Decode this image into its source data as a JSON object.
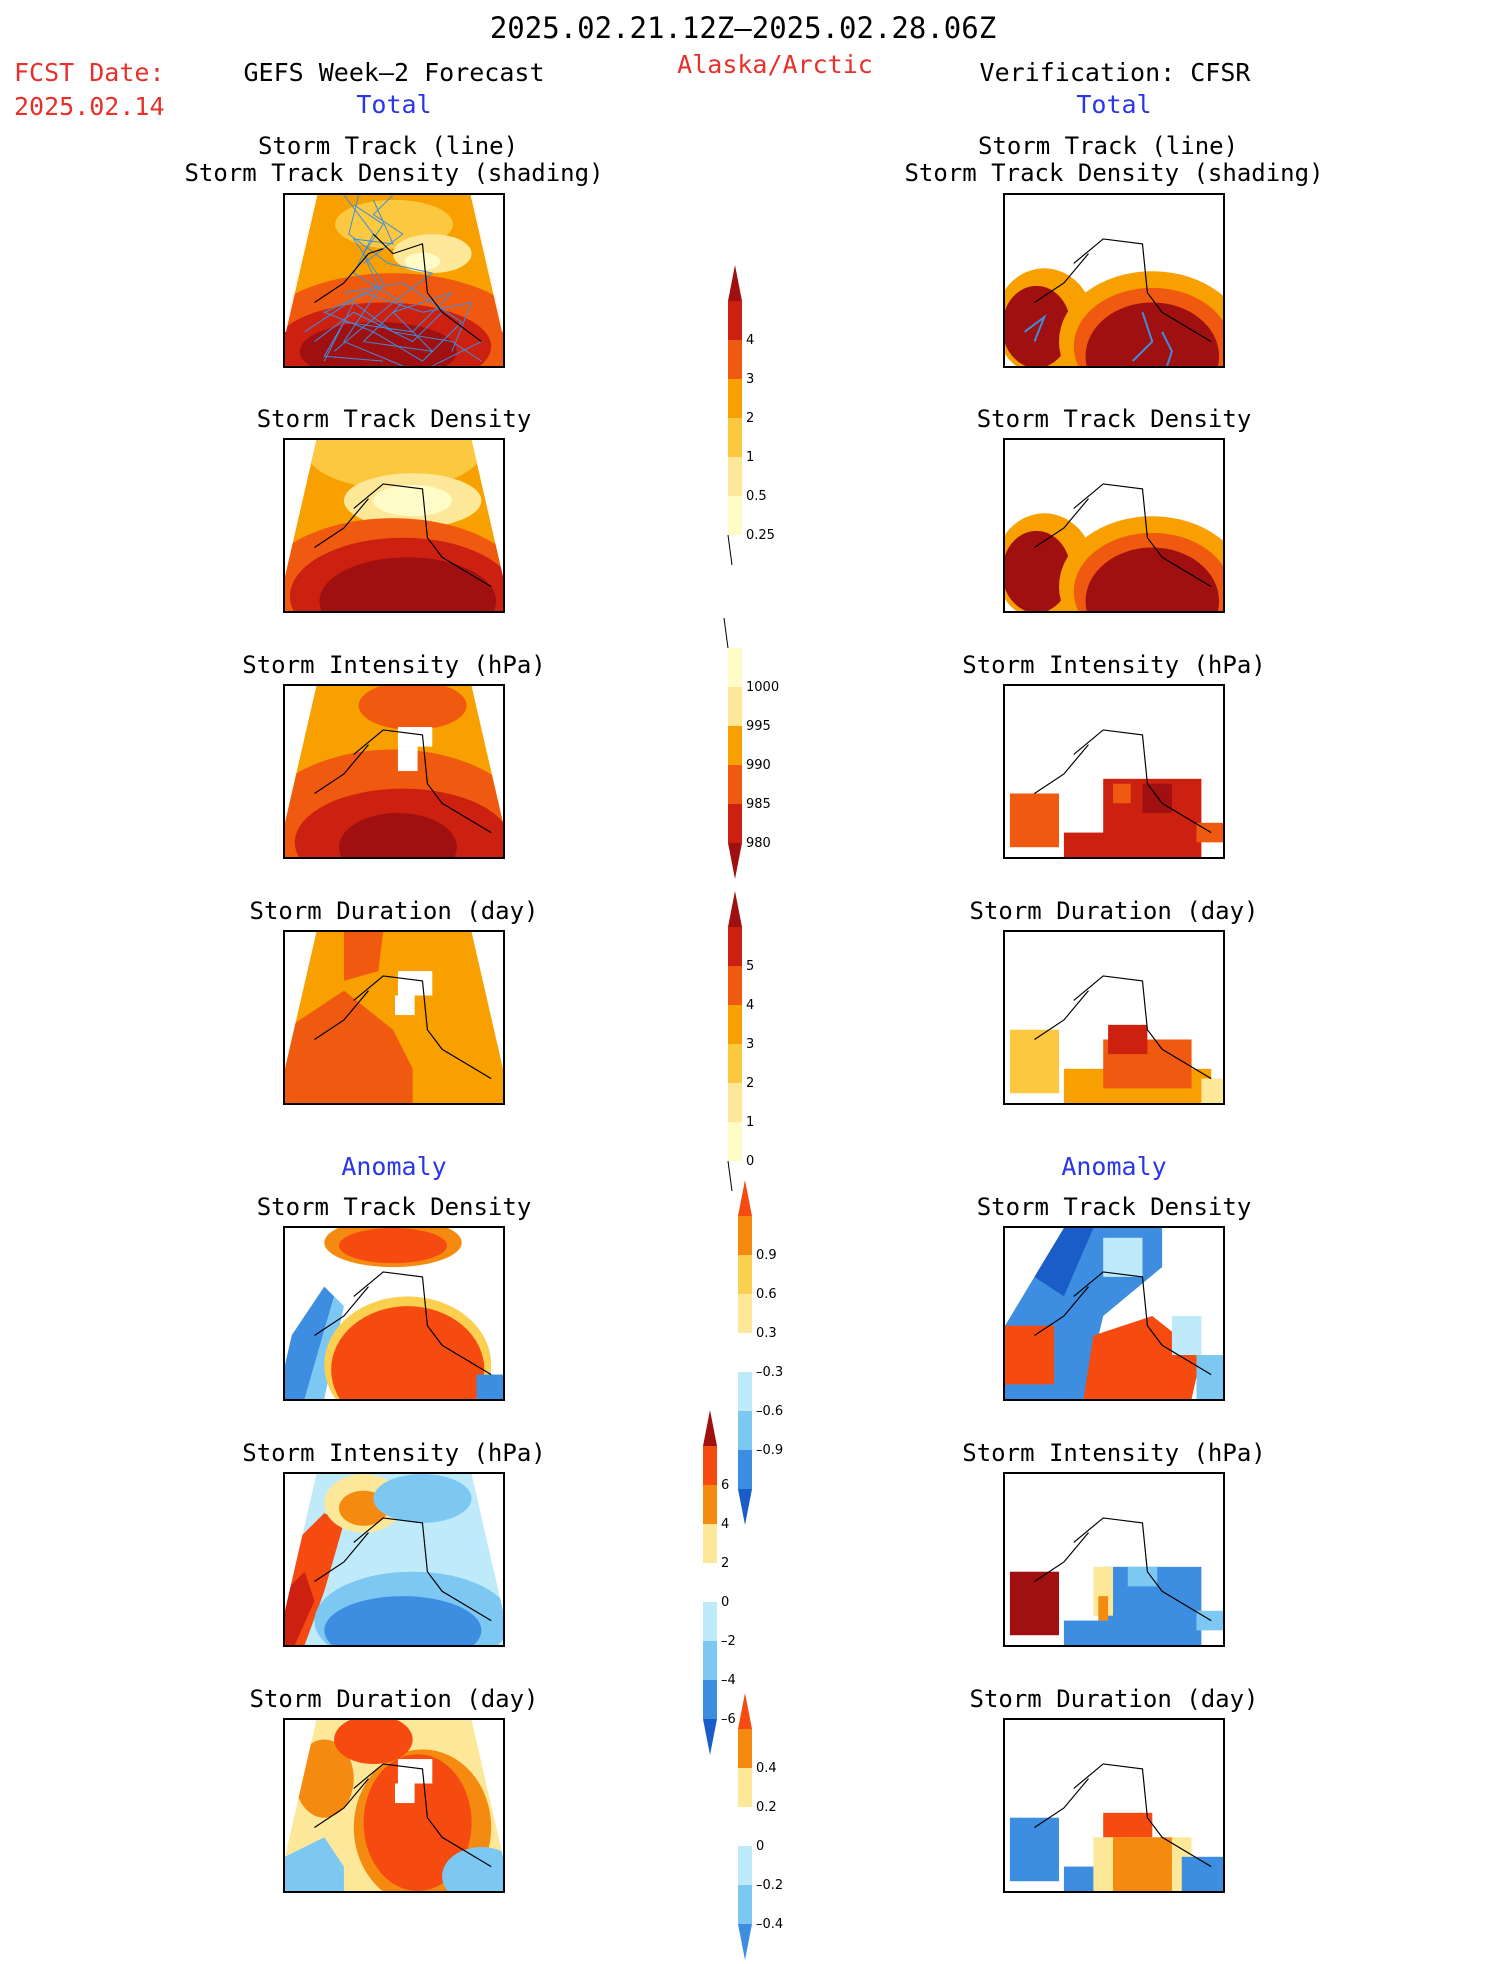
{
  "header": {
    "period": "2025.02.21.12Z–2025.02.28.06Z",
    "fcst_label": "FCST Date:",
    "fcst_date": "2025.02.14",
    "left_title": "GEFS Week–2 Forecast",
    "region": "Alaska/Arctic",
    "right_title": "Verification: CFSR"
  },
  "sections": {
    "total": "Total",
    "anomaly": "Anomaly"
  },
  "panel_titles": {
    "track_line": "Storm Track (line)",
    "track_shading": "Storm Track Density (shading)",
    "density": "Storm Track Density",
    "intensity": "Storm Intensity (hPa)",
    "duration": "Storm Duration (day)"
  },
  "colorbars": [
    {
      "id": "density_total",
      "labels": [
        "4",
        "3",
        "2",
        "1",
        "0.5",
        "0.25"
      ],
      "colors": [
        "#a01010",
        "#cc2010",
        "#ef5a10",
        "#f7a000",
        "#fbc840",
        "#fde89a",
        "#fffcc8"
      ]
    },
    {
      "id": "intensity_total",
      "labels": [
        "1000",
        "995",
        "990",
        "985",
        "980"
      ],
      "colors": [
        "#fffcc8",
        "#fde89a",
        "#f7a000",
        "#ef5a10",
        "#cc2010",
        "#a01010"
      ]
    },
    {
      "id": "duration_total",
      "labels": [
        "5",
        "4",
        "3",
        "2",
        "1",
        "0"
      ],
      "colors": [
        "#a01010",
        "#cc2010",
        "#ef5a10",
        "#f7a000",
        "#fbc840",
        "#fde89a",
        "#fffcc8"
      ]
    },
    {
      "id": "density_anom",
      "labels": [
        "0.9",
        "0.6",
        "0.3",
        "–0.3",
        "–0.6",
        "–0.9"
      ],
      "colors": [
        "#f54a10",
        "#f58a10",
        "#fbd050",
        "#fde89a",
        "#ffffff",
        "#bfeafa",
        "#7cc8f2",
        "#3d8ee0",
        "#1a5cc8"
      ]
    },
    {
      "id": "intensity_anom",
      "labels": [
        "6",
        "4",
        "2",
        "0",
        "–2",
        "–4",
        "–6"
      ],
      "colors": [
        "#a01010",
        "#f54a10",
        "#f58a10",
        "#fde89a",
        "#ffffff",
        "#bfeafa",
        "#7cc8f2",
        "#3d8ee0",
        "#1a5cc8"
      ]
    },
    {
      "id": "duration_anom",
      "labels": [
        "0.4",
        "0.2",
        "0",
        "–0.2",
        "–0.4"
      ],
      "colors": [
        "#f54a10",
        "#f58a10",
        "#fde89a",
        "#ffffff",
        "#bfeafa",
        "#7cc8f2",
        "#3d8ee0"
      ]
    }
  ]
}
